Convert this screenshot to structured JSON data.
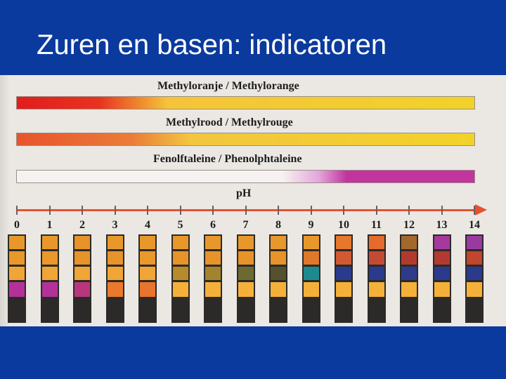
{
  "slide": {
    "title": "Zuren en basen: indicatoren"
  },
  "indicators": [
    {
      "label": "Methyloranje / Methylorange"
    },
    {
      "label": "Methylrood / Methylrouge"
    },
    {
      "label": "Fenolftaleine / Phenolphtaleine"
    }
  ],
  "ph_axis": {
    "label": "pH",
    "values": [
      "0",
      "1",
      "2",
      "3",
      "4",
      "5",
      "6",
      "7",
      "8",
      "9",
      "10",
      "11",
      "12",
      "13",
      "14"
    ]
  },
  "strips": [
    [
      "#e8982a",
      "#e9982a",
      "#f0a536",
      "#b3329a"
    ],
    [
      "#e8982a",
      "#e9982a",
      "#f0a536",
      "#b3329a"
    ],
    [
      "#e6932a",
      "#e6932a",
      "#f0a536",
      "#b8377c"
    ],
    [
      "#e8982a",
      "#e6932a",
      "#f0a536",
      "#e97a2c"
    ],
    [
      "#e8982a",
      "#e9982a",
      "#f0a536",
      "#e9742e"
    ],
    [
      "#e8982a",
      "#e6932a",
      "#b78b2b",
      "#f5b03a"
    ],
    [
      "#e8982a",
      "#e6932a",
      "#a3842e",
      "#f5b03a"
    ],
    [
      "#e8982a",
      "#e6932a",
      "#6b6a32",
      "#f5b03a"
    ],
    [
      "#e8982a",
      "#e6932a",
      "#55502e",
      "#f5b03a"
    ],
    [
      "#e8982a",
      "#e0782c",
      "#1f8a8e",
      "#f5b03a"
    ],
    [
      "#e7772c",
      "#d25a33",
      "#2a3a8c",
      "#f5b03a"
    ],
    [
      "#e66a2c",
      "#c44a33",
      "#2a3a8c",
      "#f5b03a"
    ],
    [
      "#a5682c",
      "#b13a2f",
      "#2e3a8a",
      "#f5b03a"
    ],
    [
      "#a63a9c",
      "#b23a33",
      "#2a3a8c",
      "#f5b03a"
    ],
    [
      "#9a3aa0",
      "#c2452d",
      "#2a3a8c",
      "#f5b03a"
    ]
  ]
}
